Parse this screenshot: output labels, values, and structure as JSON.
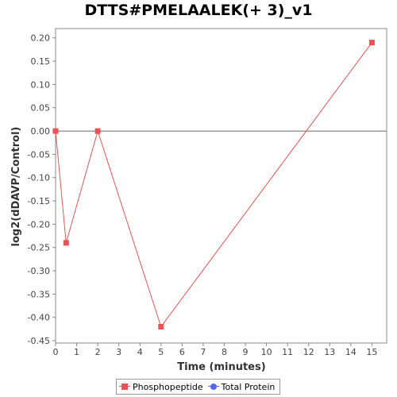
{
  "chart_data": {
    "type": "line",
    "title": "DTTS#PMELAALEK(+ 3)_v1",
    "xlabel": "Time (minutes)",
    "ylabel": "log2(dDAVP/Control)",
    "xlim": [
      0,
      15.7
    ],
    "ylim": [
      -0.455,
      0.22
    ],
    "x_ticks": [
      0,
      1,
      2,
      3,
      4,
      5,
      6,
      7,
      8,
      9,
      10,
      11,
      12,
      13,
      14,
      15
    ],
    "y_ticks": [
      0.2,
      0.15,
      0.1,
      0.05,
      0.0,
      -0.05,
      -0.1,
      -0.15,
      -0.2,
      -0.25,
      -0.3,
      -0.35,
      -0.4,
      -0.45
    ],
    "reference_line_y": 0.0,
    "series": [
      {
        "name": "Phosphopeptide",
        "color": "#e55555",
        "marker": "square",
        "x": [
          0,
          0.5,
          2,
          5,
          15
        ],
        "y": [
          0.0,
          -0.24,
          0.0,
          -0.42,
          0.19
        ]
      },
      {
        "name": "Total Protein",
        "color": "#5566ee",
        "marker": "circle",
        "x": [],
        "y": []
      }
    ],
    "legend_position": "bottom",
    "grid": false
  }
}
